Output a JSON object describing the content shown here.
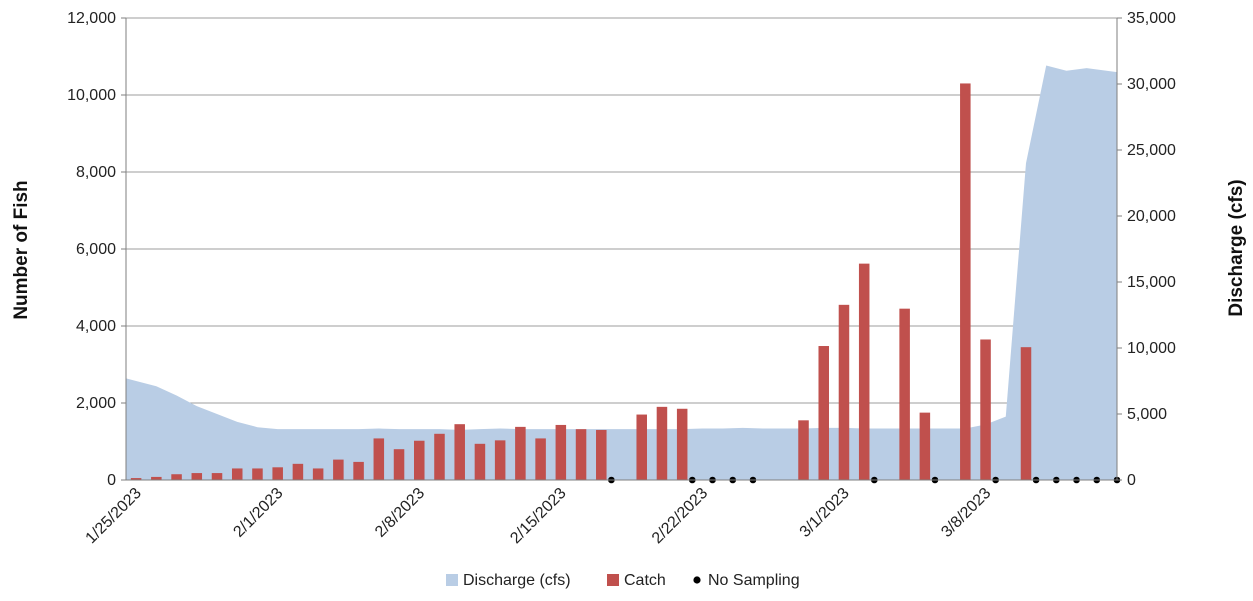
{
  "chart_data": {
    "type": "bar",
    "title": "",
    "ylabel": "Number of Fish",
    "y2label": "Discharge (cfs)",
    "xlabel": "",
    "ylim": [
      0,
      12000
    ],
    "y2lim": [
      0,
      35000
    ],
    "yticks": [
      "0",
      "2,000",
      "4,000",
      "6,000",
      "8,000",
      "10,000",
      "12,000"
    ],
    "y2ticks": [
      "0",
      "5,000",
      "10,000",
      "15,000",
      "20,000",
      "25,000",
      "30,000",
      "35,000"
    ],
    "x_start": "1/25/2023",
    "x_end": "3/14/2023",
    "x_tick_labels": [
      "1/25/2023",
      "2/1/2023",
      "2/8/2023",
      "2/15/2023",
      "2/22/2023",
      "3/1/2023",
      "3/8/2023"
    ],
    "grid": "horizontal",
    "legend_position": "bottom",
    "legend": [
      "Discharge (cfs)",
      "Catch",
      "No Sampling"
    ],
    "colors": {
      "discharge": "#b9cde5",
      "catch": "#c0504d",
      "no_sampling": "#000000",
      "grid": "#9e9e9e",
      "axis": "#7f7f7f"
    },
    "series": [
      {
        "name": "Discharge (cfs)",
        "type": "area",
        "axis": "right",
        "x": [
          "1/25/2023",
          "1/26/2023",
          "1/27/2023",
          "1/28/2023",
          "1/29/2023",
          "1/30/2023",
          "1/31/2023",
          "2/1/2023",
          "2/2/2023",
          "2/3/2023",
          "2/4/2023",
          "2/5/2023",
          "2/6/2023",
          "2/7/2023",
          "2/8/2023",
          "2/9/2023",
          "2/10/2023",
          "2/11/2023",
          "2/12/2023",
          "2/13/2023",
          "2/14/2023",
          "2/15/2023",
          "2/16/2023",
          "2/17/2023",
          "2/18/2023",
          "2/19/2023",
          "2/20/2023",
          "2/21/2023",
          "2/22/2023",
          "2/23/2023",
          "2/24/2023",
          "2/25/2023",
          "2/26/2023",
          "2/27/2023",
          "2/28/2023",
          "3/1/2023",
          "3/2/2023",
          "3/3/2023",
          "3/4/2023",
          "3/5/2023",
          "3/6/2023",
          "3/7/2023",
          "3/8/2023",
          "3/9/2023",
          "3/10/2023",
          "3/11/2023",
          "3/12/2023",
          "3/13/2023",
          "3/14/2023"
        ],
        "values": [
          7700,
          7100,
          6400,
          5600,
          5000,
          4400,
          4000,
          3850,
          3850,
          3850,
          3850,
          3850,
          3900,
          3850,
          3850,
          3850,
          3800,
          3850,
          3900,
          3850,
          3850,
          3850,
          3850,
          3850,
          3850,
          3850,
          3850,
          3850,
          3900,
          3900,
          3950,
          3900,
          3900,
          3900,
          3950,
          3950,
          3900,
          3900,
          3900,
          3900,
          3900,
          3900,
          4200,
          4800,
          24000,
          31400,
          31000,
          31200,
          30900
        ]
      },
      {
        "name": "Catch",
        "type": "bar",
        "axis": "left",
        "x": [
          "1/25/2023",
          "1/26/2023",
          "1/27/2023",
          "1/28/2023",
          "1/29/2023",
          "1/30/2023",
          "1/31/2023",
          "2/1/2023",
          "2/2/2023",
          "2/3/2023",
          "2/4/2023",
          "2/5/2023",
          "2/6/2023",
          "2/7/2023",
          "2/8/2023",
          "2/9/2023",
          "2/10/2023",
          "2/11/2023",
          "2/12/2023",
          "2/13/2023",
          "2/14/2023",
          "2/15/2023",
          "2/16/2023",
          "2/17/2023",
          "2/19/2023",
          "2/20/2023",
          "2/21/2023",
          "2/27/2023",
          "2/28/2023",
          "3/1/2023",
          "3/2/2023",
          "3/4/2023",
          "3/5/2023",
          "3/7/2023",
          "3/8/2023",
          "3/10/2023"
        ],
        "values": [
          50,
          80,
          150,
          180,
          180,
          300,
          300,
          330,
          420,
          300,
          530,
          470,
          1080,
          800,
          1020,
          1200,
          1450,
          940,
          1030,
          1380,
          1080,
          1430,
          1320,
          1300,
          1700,
          1900,
          1850,
          1550,
          3480,
          4550,
          5620,
          4450,
          1750,
          10300,
          3650,
          3450
        ]
      },
      {
        "name": "No Sampling",
        "type": "scatter",
        "axis": "left",
        "x": [
          "2/18/2023",
          "2/22/2023",
          "2/23/2023",
          "2/24/2023",
          "2/25/2023",
          "3/3/2023",
          "3/6/2023",
          "3/9/2023",
          "3/11/2023",
          "3/12/2023",
          "3/13/2023",
          "3/14/2023",
          "3/15/2023"
        ],
        "values": [
          0,
          0,
          0,
          0,
          0,
          0,
          0,
          0,
          0,
          0,
          0,
          0,
          0
        ]
      }
    ]
  }
}
